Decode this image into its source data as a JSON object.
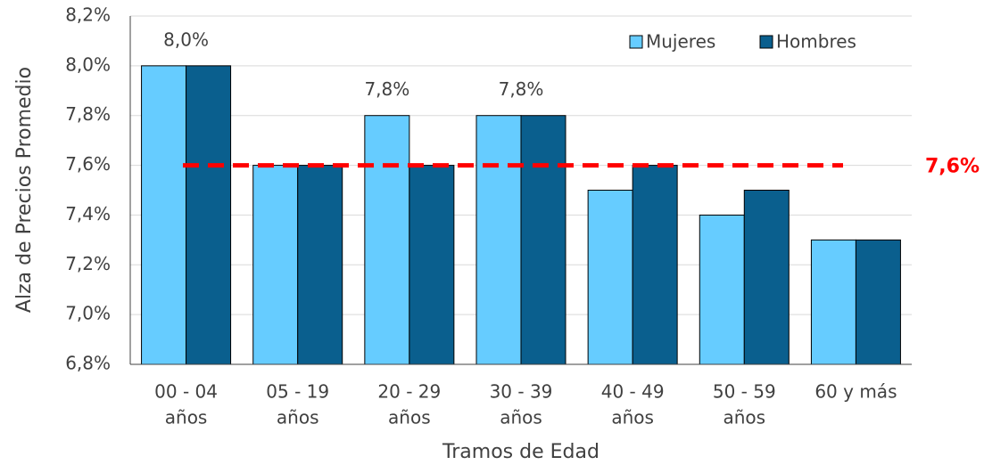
{
  "chart_data": {
    "type": "bar",
    "x_label": "Tramos de Edad",
    "y_label": "Alza de Precios Promedio",
    "categories": [
      [
        "00 - 04",
        "años"
      ],
      [
        "05 - 19",
        "años"
      ],
      [
        "20 - 29",
        "años"
      ],
      [
        "30 - 39",
        "años"
      ],
      [
        "40 - 49",
        "años"
      ],
      [
        "50 - 59",
        "años"
      ],
      [
        "60 y más"
      ]
    ],
    "series": [
      {
        "name": "Mujeres",
        "color": "#66ccff",
        "values": [
          8.0,
          7.6,
          7.8,
          7.8,
          7.5,
          7.4,
          7.3
        ],
        "value_labels": [
          "8,0%",
          null,
          "7,8%",
          "7,8%",
          null,
          null,
          null
        ]
      },
      {
        "name": "Hombres",
        "color": "#0a5f8e",
        "values": [
          8.0,
          7.6,
          7.6,
          7.8,
          7.6,
          7.5,
          7.3
        ]
      }
    ],
    "ylim": [
      6.8,
      8.2
    ],
    "yticks": [
      {
        "value": 6.8,
        "label": "6,8%"
      },
      {
        "value": 7.0,
        "label": "7,0%"
      },
      {
        "value": 7.2,
        "label": "7,2%"
      },
      {
        "value": 7.4,
        "label": "7,4%"
      },
      {
        "value": 7.6,
        "label": "7,6%"
      },
      {
        "value": 7.8,
        "label": "7,8%"
      },
      {
        "value": 8.0,
        "label": "8,0%"
      },
      {
        "value": 8.2,
        "label": "8,2%"
      }
    ],
    "grid": true,
    "legend": "top-right",
    "reference_line": {
      "value": 7.6,
      "label": "7,6%",
      "color": "#ff0000"
    }
  }
}
